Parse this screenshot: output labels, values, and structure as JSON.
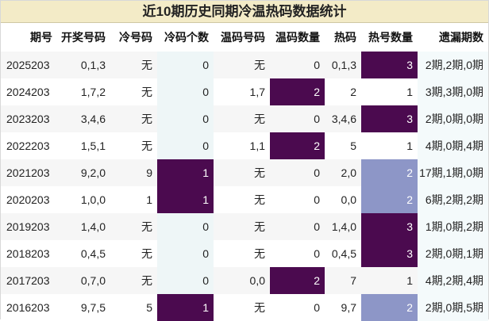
{
  "title": "近10期历史同期冷温热码数据统计",
  "headers": [
    "期号",
    "开奖号码",
    "冷号码",
    "冷码个数",
    "温码号码",
    "温码数量",
    "热码",
    "热号数量",
    "遗漏期数"
  ],
  "colors": {
    "title_bg": "#f3ebc7",
    "highlight_dark": "#4b0a4f",
    "highlight_light": "#8d96c7"
  },
  "rows": [
    {
      "issue": "2025203",
      "draw": "0,1,3",
      "cold": "无",
      "cold_count": "0",
      "warm": "无",
      "warm_count": "0",
      "hot": "0,1,3",
      "hot_count": "3",
      "miss": "2期,2期,0期"
    },
    {
      "issue": "2024203",
      "draw": "1,7,2",
      "cold": "无",
      "cold_count": "0",
      "warm": "1,7",
      "warm_count": "2",
      "hot": "2",
      "hot_count": "1",
      "miss": "3期,3期,0期"
    },
    {
      "issue": "2023203",
      "draw": "3,4,6",
      "cold": "无",
      "cold_count": "0",
      "warm": "无",
      "warm_count": "0",
      "hot": "3,4,6",
      "hot_count": "3",
      "miss": "2期,0期,0期"
    },
    {
      "issue": "2022203",
      "draw": "1,5,1",
      "cold": "无",
      "cold_count": "0",
      "warm": "1,1",
      "warm_count": "2",
      "hot": "5",
      "hot_count": "1",
      "miss": "4期,0期,4期"
    },
    {
      "issue": "2021203",
      "draw": "9,2,0",
      "cold": "9",
      "cold_count": "1",
      "warm": "无",
      "warm_count": "0",
      "hot": "2,0",
      "hot_count": "2",
      "miss": "17期,1期,0期"
    },
    {
      "issue": "2020203",
      "draw": "1,0,0",
      "cold": "1",
      "cold_count": "1",
      "warm": "无",
      "warm_count": "0",
      "hot": "0,0",
      "hot_count": "2",
      "miss": "6期,2期,2期"
    },
    {
      "issue": "2019203",
      "draw": "1,4,0",
      "cold": "无",
      "cold_count": "0",
      "warm": "无",
      "warm_count": "0",
      "hot": "1,4,0",
      "hot_count": "3",
      "miss": "1期,0期,2期"
    },
    {
      "issue": "2018203",
      "draw": "0,4,5",
      "cold": "无",
      "cold_count": "0",
      "warm": "无",
      "warm_count": "0",
      "hot": "0,4,5",
      "hot_count": "3",
      "miss": "2期,0期,1期"
    },
    {
      "issue": "2017203",
      "draw": "0,7,0",
      "cold": "无",
      "cold_count": "0",
      "warm": "0,0",
      "warm_count": "2",
      "hot": "7",
      "hot_count": "1",
      "miss": "4期,2期,4期"
    },
    {
      "issue": "2016203",
      "draw": "9,7,5",
      "cold": "5",
      "cold_count": "1",
      "warm": "无",
      "warm_count": "0",
      "hot": "9,7",
      "hot_count": "2",
      "miss": "2期,0期,5期"
    }
  ]
}
